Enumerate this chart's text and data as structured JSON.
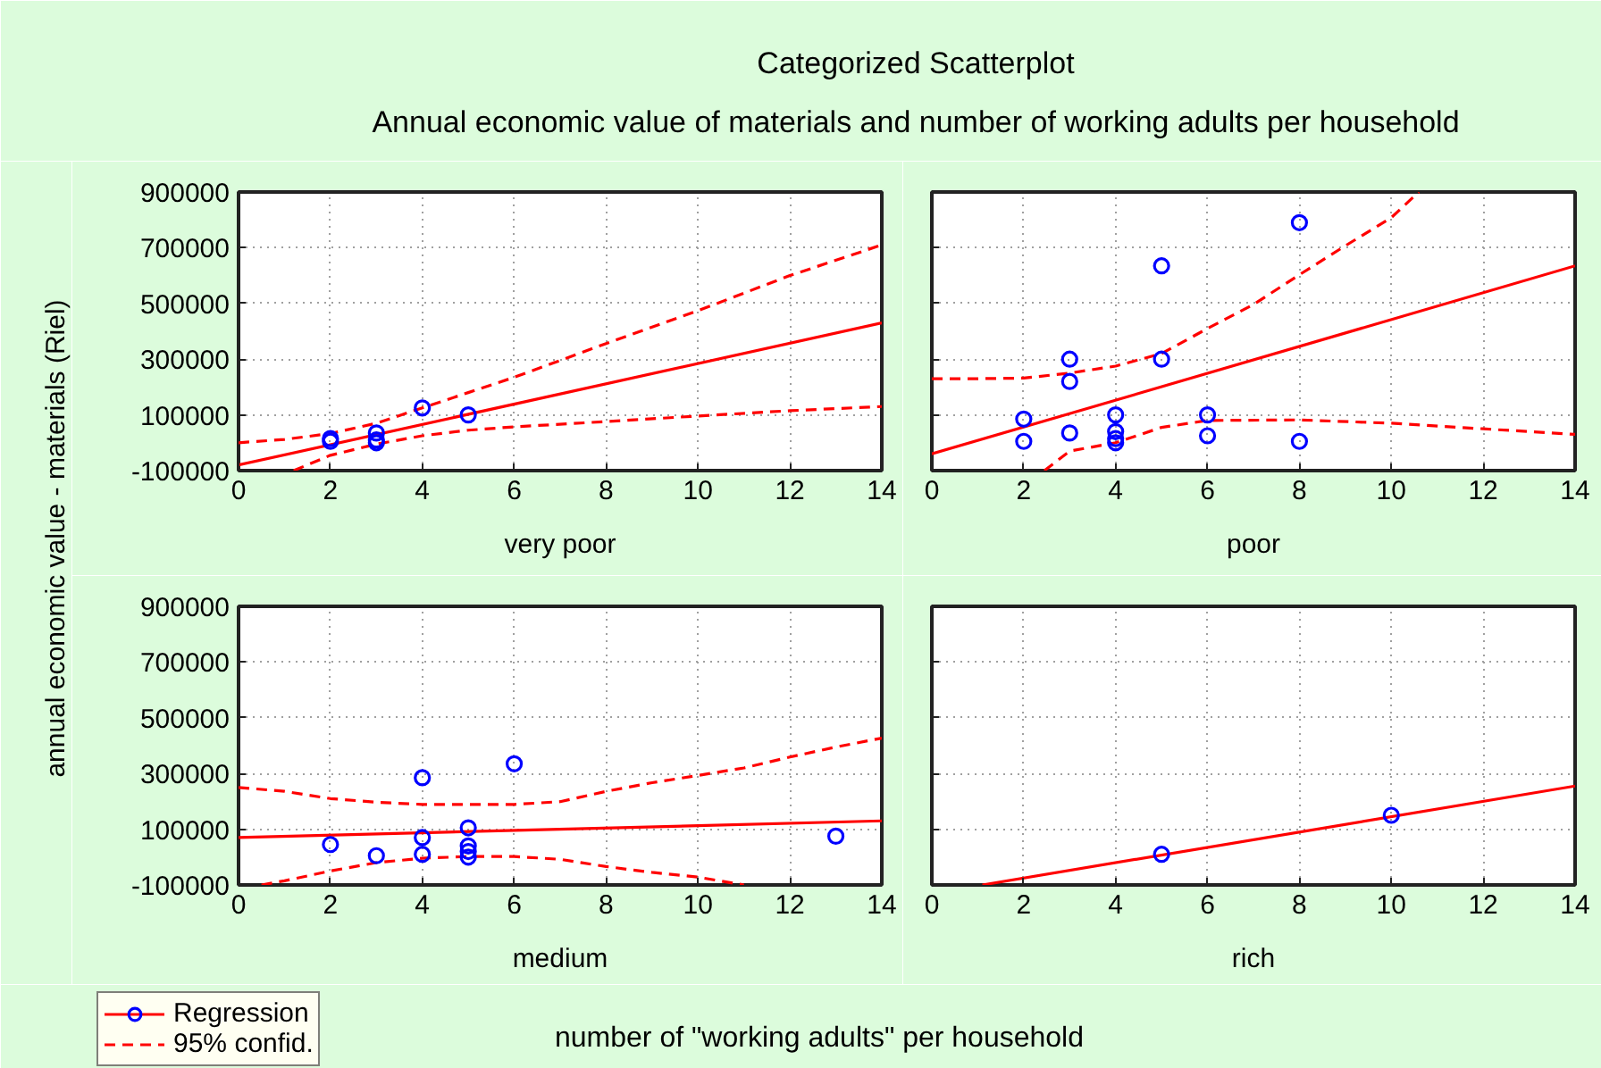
{
  "chart_data": [
    {
      "type": "scatter",
      "title": "Categorized Scatterplot",
      "subtitle": "Annual economic value of materials and number of working adults per household",
      "ylabel": "annual economic value - materials (Riel)",
      "xlabel": "very poor",
      "xlim": [
        0,
        14
      ],
      "ylim": [
        -100000,
        900000
      ],
      "xticks": [
        0,
        2,
        4,
        6,
        8,
        10,
        12,
        14
      ],
      "yticks": [
        -100000,
        100000,
        300000,
        500000,
        700000,
        900000
      ],
      "grid": true,
      "series": [
        {
          "type": "line",
          "color": "#ff0000",
          "x": [
            0,
            14
          ],
          "values": [
            -80000,
            430000
          ]
        },
        {
          "type": "line",
          "color": "#ff0000",
          "line_style": "dashed",
          "x": [
            0,
            1,
            2,
            3,
            4,
            5,
            6,
            8,
            10,
            12,
            14
          ],
          "values": [
            0,
            12000,
            33000,
            70000,
            125000,
            180000,
            235000,
            356000,
            474000,
            600000,
            710000
          ]
        },
        {
          "type": "line",
          "color": "#ff0000",
          "line_style": "dashed",
          "x": [
            1.2,
            2,
            3,
            4,
            5,
            6,
            8,
            10,
            12,
            14
          ],
          "values": [
            -100000,
            -45000,
            -5000,
            25000,
            45000,
            57000,
            76000,
            96000,
            115000,
            130000
          ]
        },
        {
          "color": "#0000ff",
          "marker": "circle",
          "x": [
            2,
            2,
            3,
            3,
            3,
            4,
            5
          ],
          "values": [
            15000,
            5000,
            35000,
            10000,
            0,
            125000,
            100000
          ]
        }
      ]
    },
    {
      "type": "scatter",
      "xlabel": "poor",
      "xlim": [
        0,
        14
      ],
      "ylim": [
        -100000,
        900000
      ],
      "xticks": [
        0,
        2,
        4,
        6,
        8,
        10,
        12,
        14
      ],
      "yticks": [
        -100000,
        100000,
        300000,
        500000,
        700000,
        900000
      ],
      "grid": true,
      "tick_labels": "x",
      "series": [
        {
          "type": "line",
          "color": "#ff0000",
          "x": [
            0,
            14
          ],
          "values": [
            -40000,
            635000
          ]
        },
        {
          "type": "line",
          "color": "#ff0000",
          "line_style": "dashed",
          "x": [
            0,
            1,
            2,
            3,
            4,
            5,
            6,
            7,
            8,
            9,
            10,
            10.6
          ],
          "values": [
            230000,
            230000,
            232000,
            250000,
            275000,
            320000,
            410000,
            496000,
            603000,
            707000,
            808000,
            900000
          ]
        },
        {
          "type": "line",
          "color": "#ff0000",
          "line_style": "dashed",
          "x": [
            2.45,
            3,
            4,
            5,
            6,
            8,
            10,
            12,
            14
          ],
          "values": [
            -100000,
            -30000,
            0,
            55000,
            80000,
            82000,
            70000,
            50000,
            30000
          ]
        },
        {
          "color": "#0000ff",
          "marker": "circle",
          "x": [
            2,
            2,
            3,
            3,
            3,
            4,
            4,
            4,
            4,
            5,
            5,
            6,
            6,
            8,
            8
          ],
          "values": [
            85000,
            5000,
            300000,
            220000,
            35000,
            100000,
            40000,
            15000,
            0,
            635000,
            300000,
            100000,
            25000,
            790000,
            5000
          ]
        }
      ]
    },
    {
      "type": "scatter",
      "xlabel": "medium",
      "xlim": [
        0,
        14
      ],
      "ylim": [
        -100000,
        900000
      ],
      "xticks": [
        0,
        2,
        4,
        6,
        8,
        10,
        12,
        14
      ],
      "yticks": [
        -100000,
        100000,
        300000,
        500000,
        700000,
        900000
      ],
      "grid": true,
      "legend": "bottom left",
      "annotations": [
        "number of \"working adults\" per household"
      ],
      "series": [
        {
          "type": "line",
          "name": "Regression",
          "color": "#ff0000",
          "x": [
            0,
            14
          ],
          "values": [
            70000,
            130000
          ]
        },
        {
          "type": "line",
          "name": "95% confid.",
          "color": "#ff0000",
          "line_style": "dashed",
          "x": [
            0,
            1,
            2,
            3,
            4,
            5,
            6,
            7,
            8,
            9,
            10,
            11,
            12,
            13,
            14
          ],
          "values": [
            250000,
            236000,
            210000,
            197000,
            189000,
            189000,
            189000,
            199000,
            236000,
            267000,
            293000,
            320000,
            359000,
            395000,
            427000
          ]
        },
        {
          "type": "line",
          "color": "#ff0000",
          "line_style": "dashed",
          "x": [
            0.5,
            1,
            2,
            3,
            4,
            5,
            6,
            7,
            8,
            9,
            10,
            11
          ],
          "values": [
            -100000,
            -85000,
            -50000,
            -20000,
            -4000,
            2000,
            2000,
            -8000,
            -34000,
            -55000,
            -72000,
            -100000
          ]
        },
        {
          "color": "#0000ff",
          "marker": "circle",
          "x": [
            2,
            3,
            4,
            4,
            4,
            5,
            5,
            5,
            5,
            6,
            13
          ],
          "values": [
            45000,
            5000,
            285000,
            70000,
            10000,
            105000,
            40000,
            20000,
            0,
            335000,
            75000
          ]
        }
      ]
    },
    {
      "type": "scatter",
      "xlabel": "rich",
      "xlim": [
        0,
        14
      ],
      "ylim": [
        -100000,
        900000
      ],
      "xticks": [
        0,
        2,
        4,
        6,
        8,
        10,
        12,
        14
      ],
      "yticks": [
        -100000,
        100000,
        300000,
        500000,
        700000,
        900000
      ],
      "grid": true,
      "tick_labels": "x",
      "series": [
        {
          "type": "line",
          "color": "#ff0000",
          "x": [
            1.1,
            14
          ],
          "values": [
            -100000,
            255000
          ]
        },
        {
          "color": "#0000ff",
          "marker": "circle",
          "x": [
            5,
            10
          ],
          "values": [
            10000,
            150000
          ]
        }
      ]
    }
  ]
}
